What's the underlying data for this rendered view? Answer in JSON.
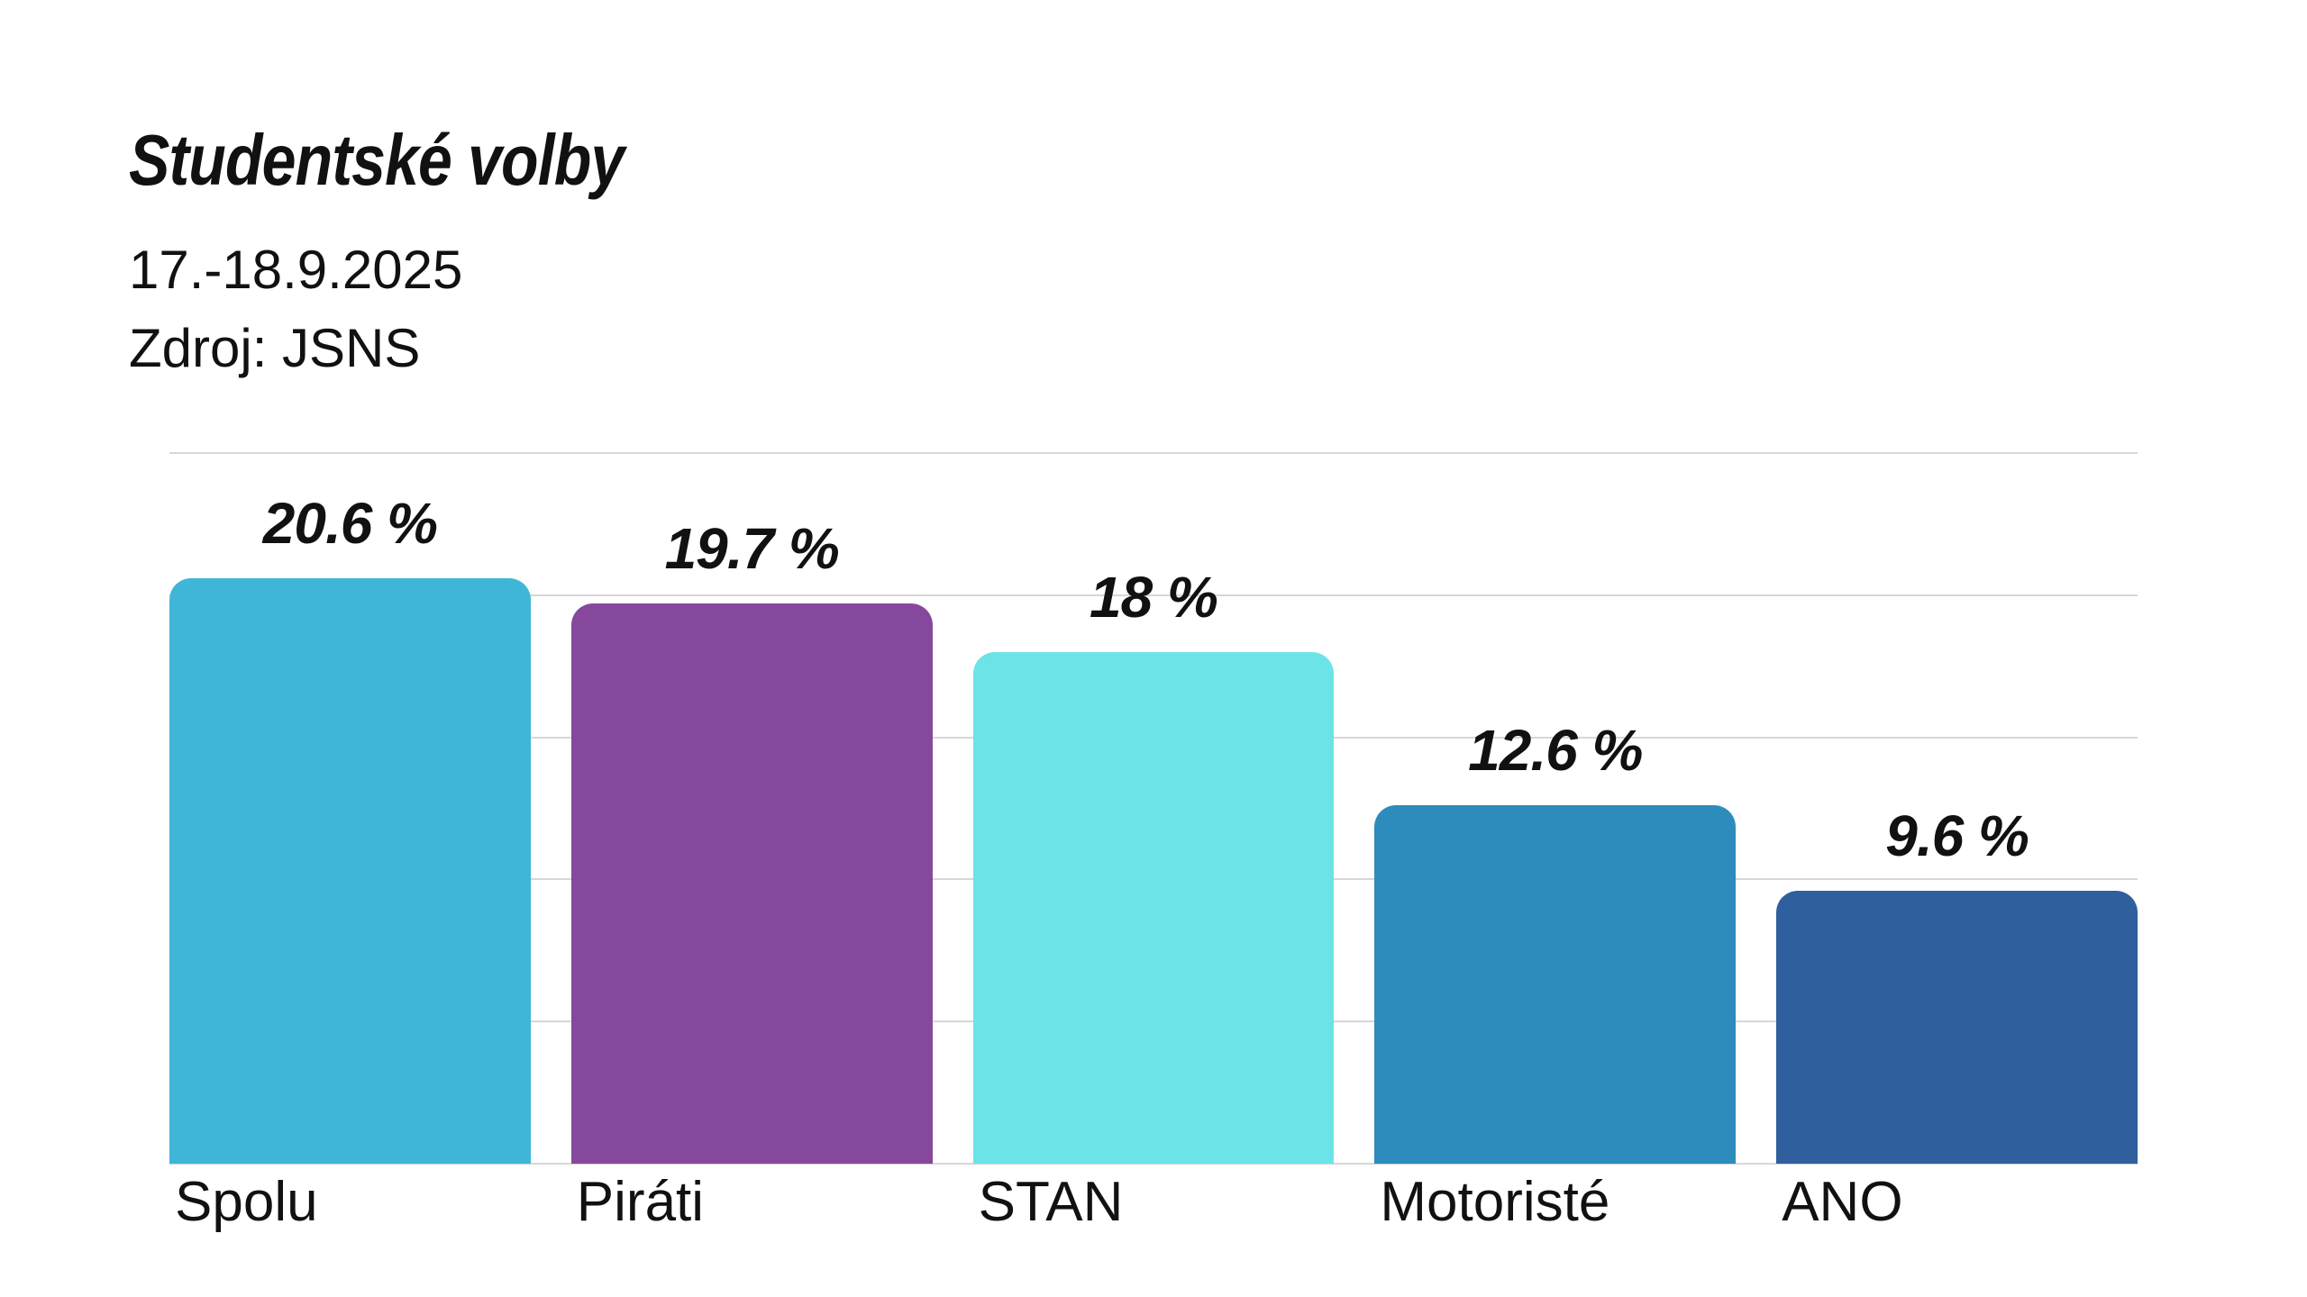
{
  "header": {
    "title": "Studentské volby",
    "date_range": "17.-18.9.2025",
    "source": "Zdroj: JSNS"
  },
  "chart_data": {
    "type": "bar",
    "title": "Studentské volby",
    "subtitle": "17.-18.9.2025",
    "source": "Zdroj: JSNS",
    "categories": [
      "Spolu",
      "Piráti",
      "STAN",
      "Motoristé",
      "ANO"
    ],
    "values": [
      20.6,
      19.7,
      18,
      12.6,
      9.6
    ],
    "value_labels": [
      "20.6 %",
      "19.7 %",
      "18 %",
      "12.6 %",
      "9.6 %"
    ],
    "bar_colors": [
      "#3FB6D8",
      "#86489D",
      "#6CE3E7",
      "#2D8CBC",
      "#2F5F9D"
    ],
    "xlabel": "",
    "ylabel": "",
    "ylim": [
      0,
      25
    ],
    "grid_values": [
      0,
      5,
      10,
      15,
      20,
      25
    ],
    "grid": true,
    "legend": false,
    "gridline_color": "#d7d7d7",
    "text_color": "#111111",
    "background_color": "#ffffff"
  }
}
